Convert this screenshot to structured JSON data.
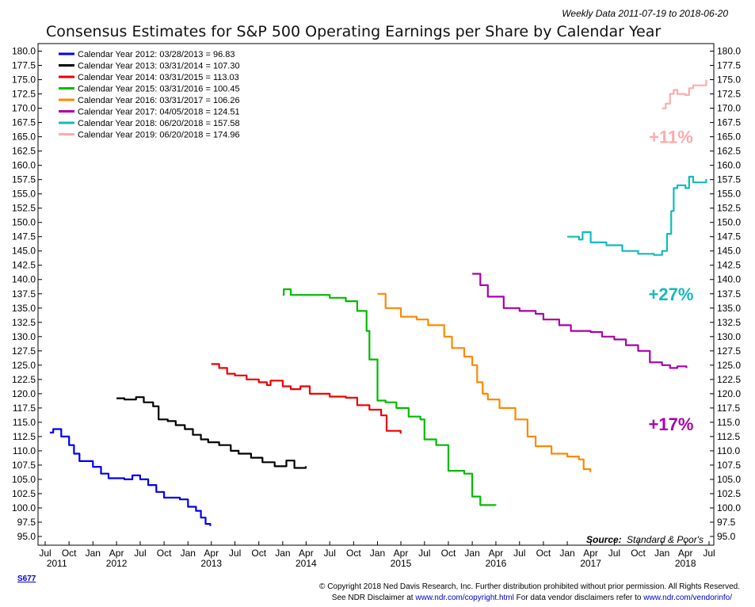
{
  "header": {
    "meta": "Weekly Data 2011-07-19 to 2018-06-20",
    "title": "Consensus Estimates for S&P 500 Operating Earnings per Share by Calendar Year"
  },
  "chart_data": {
    "type": "line",
    "title": "Consensus Estimates for S&P 500 Operating Earnings per Share by Calendar Year",
    "xlabel": "",
    "ylabel": "",
    "ylim": [
      95,
      180
    ],
    "xlim": [
      "2011-07-01",
      "2018-07-01"
    ],
    "yticks": [
      "180.0",
      "177.5",
      "175.0",
      "172.5",
      "170.0",
      "167.5",
      "165.0",
      "162.5",
      "160.0",
      "157.5",
      "155.0",
      "152.5",
      "150.0",
      "147.5",
      "145.0",
      "142.5",
      "140.0",
      "137.5",
      "135.0",
      "132.5",
      "130.0",
      "127.5",
      "125.0",
      "122.5",
      "120.0",
      "117.5",
      "115.0",
      "112.5",
      "110.0",
      "107.5",
      "105.0",
      "102.5",
      "100.0",
      "97.5",
      "95.0"
    ],
    "xticks_month": [
      "Jul",
      "Oct",
      "Jan",
      "Apr",
      "Jul",
      "Oct",
      "Jan",
      "Apr",
      "Jul",
      "Oct",
      "Jan",
      "Apr",
      "Jul",
      "Oct",
      "Jan",
      "Apr",
      "Jul",
      "Oct",
      "Jan",
      "Apr",
      "Jul",
      "Oct",
      "Jan",
      "Apr",
      "Jul",
      "Oct",
      "Jan",
      "Apr",
      "Jul"
    ],
    "xticks_year": [
      "2011",
      "2012",
      "2013",
      "2014",
      "2015",
      "2016",
      "2017",
      "2018"
    ],
    "grid": false,
    "legend": "top-left",
    "series": [
      {
        "name": "Calendar Year 2012: 03/28/2013 = 96.83",
        "color": "#0000ee",
        "points": [
          [
            "2011-07-19",
            113.2
          ],
          [
            "2011-08-01",
            113.8
          ],
          [
            "2011-09-01",
            112.5
          ],
          [
            "2011-10-01",
            111
          ],
          [
            "2011-10-20",
            109.5
          ],
          [
            "2011-11-10",
            108.2
          ],
          [
            "2012-01-01",
            107.2
          ],
          [
            "2012-02-01",
            106
          ],
          [
            "2012-03-01",
            105.2
          ],
          [
            "2012-05-01",
            105
          ],
          [
            "2012-06-01",
            105.7
          ],
          [
            "2012-07-01",
            105
          ],
          [
            "2012-08-01",
            104
          ],
          [
            "2012-09-01",
            102.8
          ],
          [
            "2012-10-01",
            101.8
          ],
          [
            "2012-12-01",
            101.5
          ],
          [
            "2013-01-01",
            100.2
          ],
          [
            "2013-02-01",
            99.5
          ],
          [
            "2013-02-20",
            98.3
          ],
          [
            "2013-03-10",
            97.2
          ],
          [
            "2013-03-28",
            96.83
          ]
        ]
      },
      {
        "name": "Calendar Year 2013: 03/31/2014 = 107.30",
        "color": "#000000",
        "points": [
          [
            "2012-04-01",
            119.2
          ],
          [
            "2012-05-01",
            119
          ],
          [
            "2012-06-15",
            119.4
          ],
          [
            "2012-07-15",
            118.5
          ],
          [
            "2012-08-20",
            117.8
          ],
          [
            "2012-09-10",
            115.5
          ],
          [
            "2012-10-15",
            115.2
          ],
          [
            "2012-11-15",
            114.5
          ],
          [
            "2012-12-20",
            113.8
          ],
          [
            "2013-01-20",
            112.8
          ],
          [
            "2013-02-20",
            112
          ],
          [
            "2013-03-20",
            111.5
          ],
          [
            "2013-05-01",
            111
          ],
          [
            "2013-06-15",
            110
          ],
          [
            "2013-07-15",
            109.5
          ],
          [
            "2013-09-01",
            108.8
          ],
          [
            "2013-10-15",
            108
          ],
          [
            "2013-12-01",
            107.3
          ],
          [
            "2014-01-15",
            108.3
          ],
          [
            "2014-02-15",
            107
          ],
          [
            "2014-03-31",
            107.3
          ]
        ]
      },
      {
        "name": "Calendar Year 2014: 03/31/2015 = 113.03",
        "color": "#ee0000",
        "points": [
          [
            "2013-04-01",
            125.2
          ],
          [
            "2013-05-01",
            124.5
          ],
          [
            "2013-06-01",
            123.5
          ],
          [
            "2013-07-01",
            123.2
          ],
          [
            "2013-08-15",
            122.5
          ],
          [
            "2013-10-01",
            122
          ],
          [
            "2013-11-01",
            121.5
          ],
          [
            "2013-11-15",
            122.3
          ],
          [
            "2014-01-01",
            121.3
          ],
          [
            "2014-02-01",
            120.8
          ],
          [
            "2014-03-10",
            121.3
          ],
          [
            "2014-04-15",
            120
          ],
          [
            "2014-07-01",
            119.5
          ],
          [
            "2014-09-01",
            119.3
          ],
          [
            "2014-10-15",
            118
          ],
          [
            "2014-12-01",
            117.2
          ],
          [
            "2015-01-15",
            116.2
          ],
          [
            "2015-02-05",
            113.5
          ],
          [
            "2015-03-31",
            113.03
          ]
        ]
      },
      {
        "name": "Calendar Year 2015: 03/31/2016 = 100.45",
        "color": "#00bb00",
        "points": [
          [
            "2014-01-01",
            137.3
          ],
          [
            "2014-01-05",
            138.3
          ],
          [
            "2014-02-01",
            137.3
          ],
          [
            "2014-05-01",
            137.3
          ],
          [
            "2014-07-01",
            136.8
          ],
          [
            "2014-09-01",
            136.2
          ],
          [
            "2014-10-15",
            134.5
          ],
          [
            "2014-11-20",
            131
          ],
          [
            "2014-12-01",
            126
          ],
          [
            "2015-01-01",
            118.8
          ],
          [
            "2015-02-01",
            118.5
          ],
          [
            "2015-03-15",
            117.5
          ],
          [
            "2015-05-01",
            116
          ],
          [
            "2015-06-15",
            115.5
          ],
          [
            "2015-07-01",
            112
          ],
          [
            "2015-08-15",
            111
          ],
          [
            "2015-10-01",
            106.5
          ],
          [
            "2015-12-01",
            106
          ],
          [
            "2016-01-01",
            102
          ],
          [
            "2016-02-01",
            100.5
          ],
          [
            "2016-03-31",
            100.45
          ]
        ]
      },
      {
        "name": "Calendar Year 2016: 03/31/2017 = 106.26",
        "color": "#ff8800",
        "points": [
          [
            "2015-01-01",
            137.5
          ],
          [
            "2015-02-01",
            135
          ],
          [
            "2015-04-01",
            133.5
          ],
          [
            "2015-06-01",
            133
          ],
          [
            "2015-07-15",
            132
          ],
          [
            "2015-09-15",
            130
          ],
          [
            "2015-10-15",
            128
          ],
          [
            "2015-12-01",
            126.5
          ],
          [
            "2016-01-01",
            125
          ],
          [
            "2016-01-20",
            122
          ],
          [
            "2016-02-10",
            120
          ],
          [
            "2016-03-01",
            119
          ],
          [
            "2016-04-15",
            117.5
          ],
          [
            "2016-06-15",
            115.5
          ],
          [
            "2016-08-01",
            112.5
          ],
          [
            "2016-09-01",
            110.8
          ],
          [
            "2016-11-01",
            109.5
          ],
          [
            "2017-01-01",
            109
          ],
          [
            "2017-02-15",
            108.5
          ],
          [
            "2017-03-05",
            106.8
          ],
          [
            "2017-03-31",
            106.26
          ]
        ]
      },
      {
        "name": "Calendar Year 2017: 04/05/2018 = 124.51",
        "color": "#aa00aa",
        "points": [
          [
            "2016-01-01",
            141
          ],
          [
            "2016-02-01",
            139
          ],
          [
            "2016-03-01",
            137
          ],
          [
            "2016-05-01",
            135
          ],
          [
            "2016-07-01",
            134.5
          ],
          [
            "2016-09-01",
            134
          ],
          [
            "2016-10-01",
            133
          ],
          [
            "2016-12-01",
            132
          ],
          [
            "2017-01-15",
            131
          ],
          [
            "2017-04-01",
            130.8
          ],
          [
            "2017-05-15",
            130
          ],
          [
            "2017-07-01",
            129.5
          ],
          [
            "2017-08-15",
            128.5
          ],
          [
            "2017-10-01",
            127.5
          ],
          [
            "2017-11-15",
            125.5
          ],
          [
            "2018-01-01",
            125
          ],
          [
            "2018-02-01",
            124.5
          ],
          [
            "2018-03-01",
            124.8
          ],
          [
            "2018-04-05",
            124.51
          ]
        ]
      },
      {
        "name": "Calendar Year 2018: 06/20/2018 = 157.58",
        "color": "#11bbbb",
        "points": [
          [
            "2017-01-01",
            147.5
          ],
          [
            "2017-02-15",
            147
          ],
          [
            "2017-03-01",
            148.3
          ],
          [
            "2017-04-01",
            146.5
          ],
          [
            "2017-06-01",
            146
          ],
          [
            "2017-08-01",
            145
          ],
          [
            "2017-10-01",
            144.5
          ],
          [
            "2017-12-01",
            144.3
          ],
          [
            "2018-01-01",
            145
          ],
          [
            "2018-01-20",
            148
          ],
          [
            "2018-02-05",
            152
          ],
          [
            "2018-02-15",
            156
          ],
          [
            "2018-03-01",
            156.5
          ],
          [
            "2018-04-01",
            156
          ],
          [
            "2018-04-15",
            158
          ],
          [
            "2018-05-01",
            157
          ],
          [
            "2018-06-20",
            157.58
          ]
        ]
      },
      {
        "name": "Calendar Year 2019: 06/20/2018 = 174.96",
        "color": "#ffaaaa",
        "points": [
          [
            "2018-01-01",
            170
          ],
          [
            "2018-01-15",
            170.8
          ],
          [
            "2018-02-01",
            172.5
          ],
          [
            "2018-02-15",
            173.2
          ],
          [
            "2018-03-01",
            172.5
          ],
          [
            "2018-04-01",
            172.3
          ],
          [
            "2018-04-15",
            173.5
          ],
          [
            "2018-05-01",
            174
          ],
          [
            "2018-06-20",
            174.96
          ]
        ]
      }
    ],
    "annotations": [
      {
        "text": "+11%",
        "color": "#ffaaaa",
        "y": 165.0
      },
      {
        "text": "+27%",
        "color": "#11bbbb",
        "y": 137.5
      },
      {
        "text": "+17%",
        "color": "#aa00aa",
        "y": 114.7
      }
    ],
    "source_label": "Source:",
    "source_value": "Standard & Poor's"
  },
  "footer": {
    "chart_code": "S677",
    "copyright": "© Copyright 2018 Ned Davis Research, Inc. Further distribution prohibited without prior permission. All Rights Reserved.",
    "disclaimer_prefix": "See NDR Disclaimer at ",
    "disclaimer_link1": "www.ndr.com/copyright.html",
    "disclaimer_middle": "  For data vendor disclaimers refer to ",
    "disclaimer_link2": "www.ndr.com/vendorinfo/"
  }
}
